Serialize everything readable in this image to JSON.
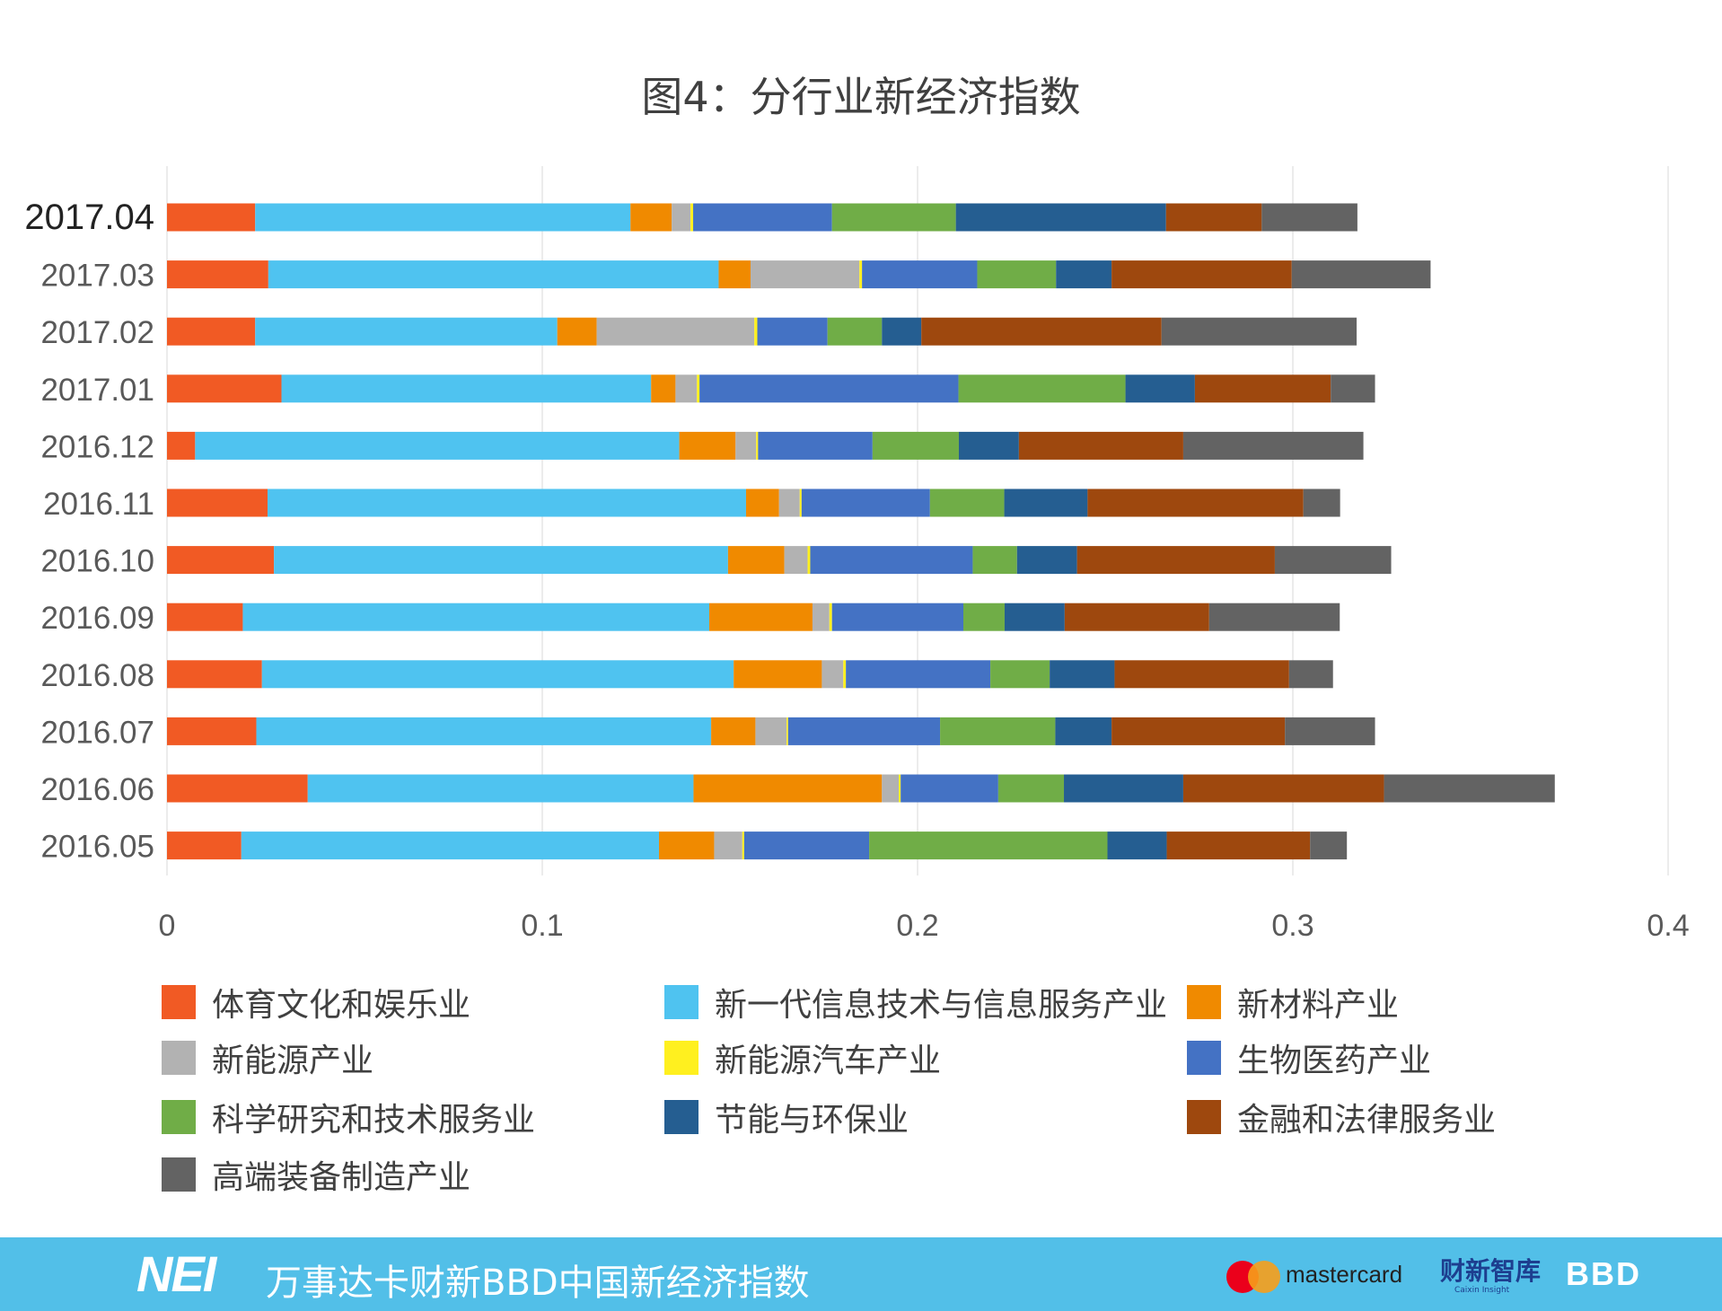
{
  "chart_data": {
    "type": "bar",
    "orientation": "horizontal",
    "stacked": true,
    "title": "图4：分行业新经济指数",
    "xlabel": "",
    "ylabel": "",
    "xlim": [
      0,
      0.4
    ],
    "x_ticks": [
      "0",
      "0.1",
      "0.2",
      "0.3",
      "0.4"
    ],
    "grid": "vertical",
    "legend_position": "bottom",
    "categories": [
      "2017.04",
      "2017.03",
      "2017.02",
      "2017.01",
      "2016.12",
      "2016.11",
      "2016.10",
      "2016.09",
      "2016.08",
      "2016.07",
      "2016.06",
      "2016.05"
    ],
    "series": [
      {
        "name": "体育文化和娱乐业",
        "color": "#f15a24",
        "values": [
          0.0235,
          0.027,
          0.0235,
          0.0305,
          0.0075,
          0.0268,
          0.0285,
          0.0202,
          0.0253,
          0.0238,
          0.0375,
          0.0198
        ]
      },
      {
        "name": "新一代信息技术与信息服务产业",
        "color": "#4fc3f0",
        "values": [
          0.1,
          0.12,
          0.0805,
          0.0985,
          0.129,
          0.1275,
          0.121,
          0.1243,
          0.1257,
          0.1212,
          0.1028,
          0.1113
        ]
      },
      {
        "name": "新材料产业",
        "color": "#f08a00",
        "values": [
          0.011,
          0.0085,
          0.0105,
          0.0065,
          0.015,
          0.0088,
          0.015,
          0.0275,
          0.0235,
          0.0118,
          0.0502,
          0.0147
        ]
      },
      {
        "name": "新能源产业",
        "color": "#b2b2b2",
        "values": [
          0.005,
          0.029,
          0.042,
          0.0057,
          0.0055,
          0.0055,
          0.0062,
          0.0045,
          0.0057,
          0.0083,
          0.0045,
          0.0075
        ]
      },
      {
        "name": "新能源汽车产业",
        "color": "#fff01f",
        "values": [
          0.0007,
          0.0007,
          0.0008,
          0.0007,
          0.0005,
          0.0005,
          0.0007,
          0.0007,
          0.0007,
          0.0004,
          0.0005,
          0.0005
        ]
      },
      {
        "name": "生物医药产业",
        "color": "#4472c4",
        "values": [
          0.037,
          0.0307,
          0.0187,
          0.069,
          0.0305,
          0.0342,
          0.0433,
          0.035,
          0.0385,
          0.0405,
          0.026,
          0.0333
        ]
      },
      {
        "name": "科学研究和技术服务业",
        "color": "#70ad47",
        "values": [
          0.033,
          0.021,
          0.0145,
          0.0445,
          0.023,
          0.0198,
          0.0118,
          0.011,
          0.0158,
          0.0307,
          0.0175,
          0.0635
        ]
      },
      {
        "name": "节能与环保业",
        "color": "#255e91",
        "values": [
          0.056,
          0.0148,
          0.0105,
          0.0185,
          0.016,
          0.0222,
          0.016,
          0.016,
          0.0173,
          0.015,
          0.0318,
          0.0158
        ]
      },
      {
        "name": "金融和法律服务业",
        "color": "#9e480e",
        "values": [
          0.0255,
          0.048,
          0.064,
          0.0362,
          0.0438,
          0.0575,
          0.0527,
          0.0385,
          0.0465,
          0.0462,
          0.0535,
          0.0382
        ]
      },
      {
        "name": "高端装备制造产业",
        "color": "#636363",
        "values": [
          0.0255,
          0.037,
          0.052,
          0.0118,
          0.048,
          0.0098,
          0.031,
          0.0348,
          0.0117,
          0.024,
          0.0455,
          0.0098
        ]
      }
    ]
  },
  "footer": {
    "logo": "NEI",
    "text": "万事达卡财新BBD中国新经济指数",
    "mastercard": "mastercard",
    "caixin": "财新智库",
    "caixin_sub": "Caixin Insight",
    "bbd": "BBD",
    "bar_color": "#52bfe8",
    "mc_red": "#eb001b",
    "mc_orange": "#f79e1b"
  }
}
